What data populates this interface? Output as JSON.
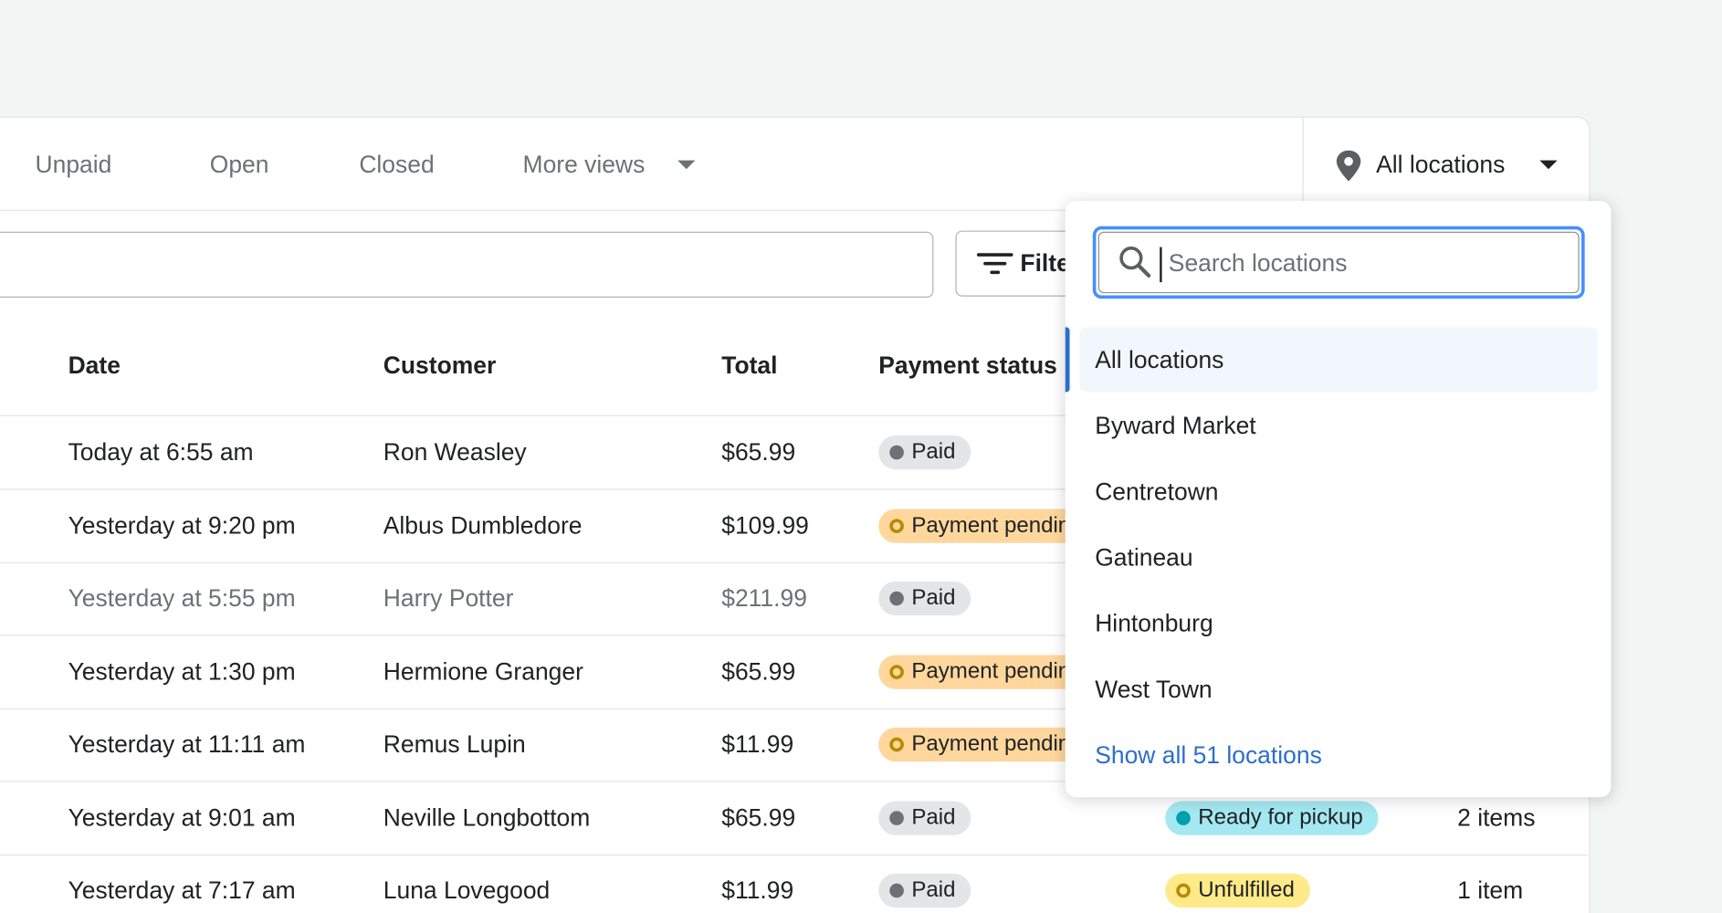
{
  "tabs": [
    "Unpaid",
    "Open",
    "Closed",
    "More views"
  ],
  "location_button": "All locations",
  "filter_button": "Filter",
  "table": {
    "headers": [
      "Date",
      "Customer",
      "Total",
      "Payment status"
    ],
    "rows": [
      {
        "date": "Today at 6:55 am",
        "customer": "Ron Weasley",
        "total": "$65.99",
        "payment": "Paid"
      },
      {
        "date": "Yesterday at 9:20 pm",
        "customer": "Albus Dumbledore",
        "total": "$109.99",
        "payment": "Payment pending"
      },
      {
        "date": "Yesterday at 5:55 pm",
        "customer": "Harry Potter",
        "total": "$211.99",
        "payment": "Paid"
      },
      {
        "date": "Yesterday at 1:30 pm",
        "customer": "Hermione Granger",
        "total": "$65.99",
        "payment": "Payment pending"
      },
      {
        "date": "Yesterday at 11:11 am",
        "customer": "Remus Lupin",
        "total": "$11.99",
        "payment": "Payment pending"
      },
      {
        "date": "Yesterday at 9:01 am",
        "customer": "Neville Longbottom",
        "total": "$65.99",
        "payment": "Paid",
        "fulfillment": "Ready for pickup",
        "items": "2 items"
      },
      {
        "date": "Yesterday at 7:17 am",
        "customer": "Luna Lovegood",
        "total": "$11.99",
        "payment": "Paid",
        "fulfillment": "Unfulfilled",
        "items": "1 item"
      }
    ]
  },
  "dropdown": {
    "search_placeholder": "Search locations",
    "options": [
      "All locations",
      "Byward Market",
      "Centretown",
      "Gatineau",
      "Hintonburg",
      "West Town"
    ],
    "show_all": "Show all 51 locations"
  }
}
